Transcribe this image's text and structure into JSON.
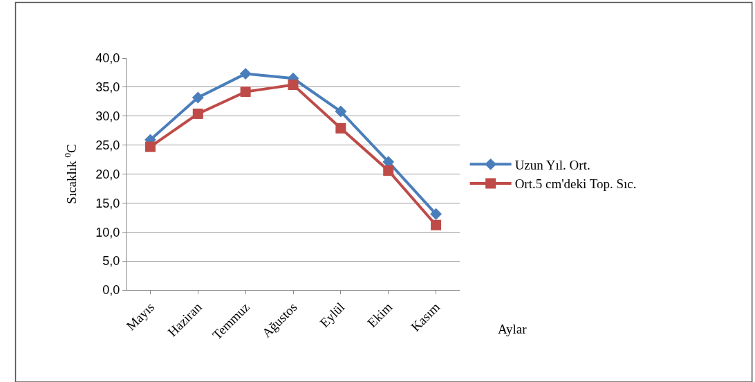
{
  "chart_data": {
    "type": "line",
    "xlabel": "Aylar",
    "ylabel": "Sıcaklık $^{0}$C",
    "categories": [
      "Mayıs",
      "Haziran",
      "Temmuz",
      "Ağustos",
      "Eylül",
      "Ekim",
      "Kasım"
    ],
    "series": [
      {
        "name": "Uzun Yıl. Ort.",
        "color": "#4a7ebb",
        "marker": "diamond",
        "values": [
          25.9,
          33.2,
          37.3,
          36.5,
          30.8,
          22.1,
          13.1
        ]
      },
      {
        "name": "Ort.5 cm'deki Top. Sıc.",
        "color": "#be4b48",
        "marker": "square",
        "values": [
          24.7,
          30.4,
          34.2,
          35.4,
          27.9,
          20.6,
          11.2
        ]
      }
    ],
    "ylim": [
      0,
      40
    ],
    "yticks": [
      {
        "value": 0,
        "label": "0,0"
      },
      {
        "value": 5,
        "label": "5,0"
      },
      {
        "value": 10,
        "label": "10,0"
      },
      {
        "value": 15,
        "label": "15,0"
      },
      {
        "value": 20,
        "label": "20,0"
      },
      {
        "value": 25,
        "label": "25,0"
      },
      {
        "value": 30,
        "label": "30,0"
      },
      {
        "value": 35,
        "label": "35,0"
      },
      {
        "value": 40,
        "label": "40,0"
      }
    ],
    "grid": "y",
    "legend": "right",
    "line_style": "solid"
  }
}
